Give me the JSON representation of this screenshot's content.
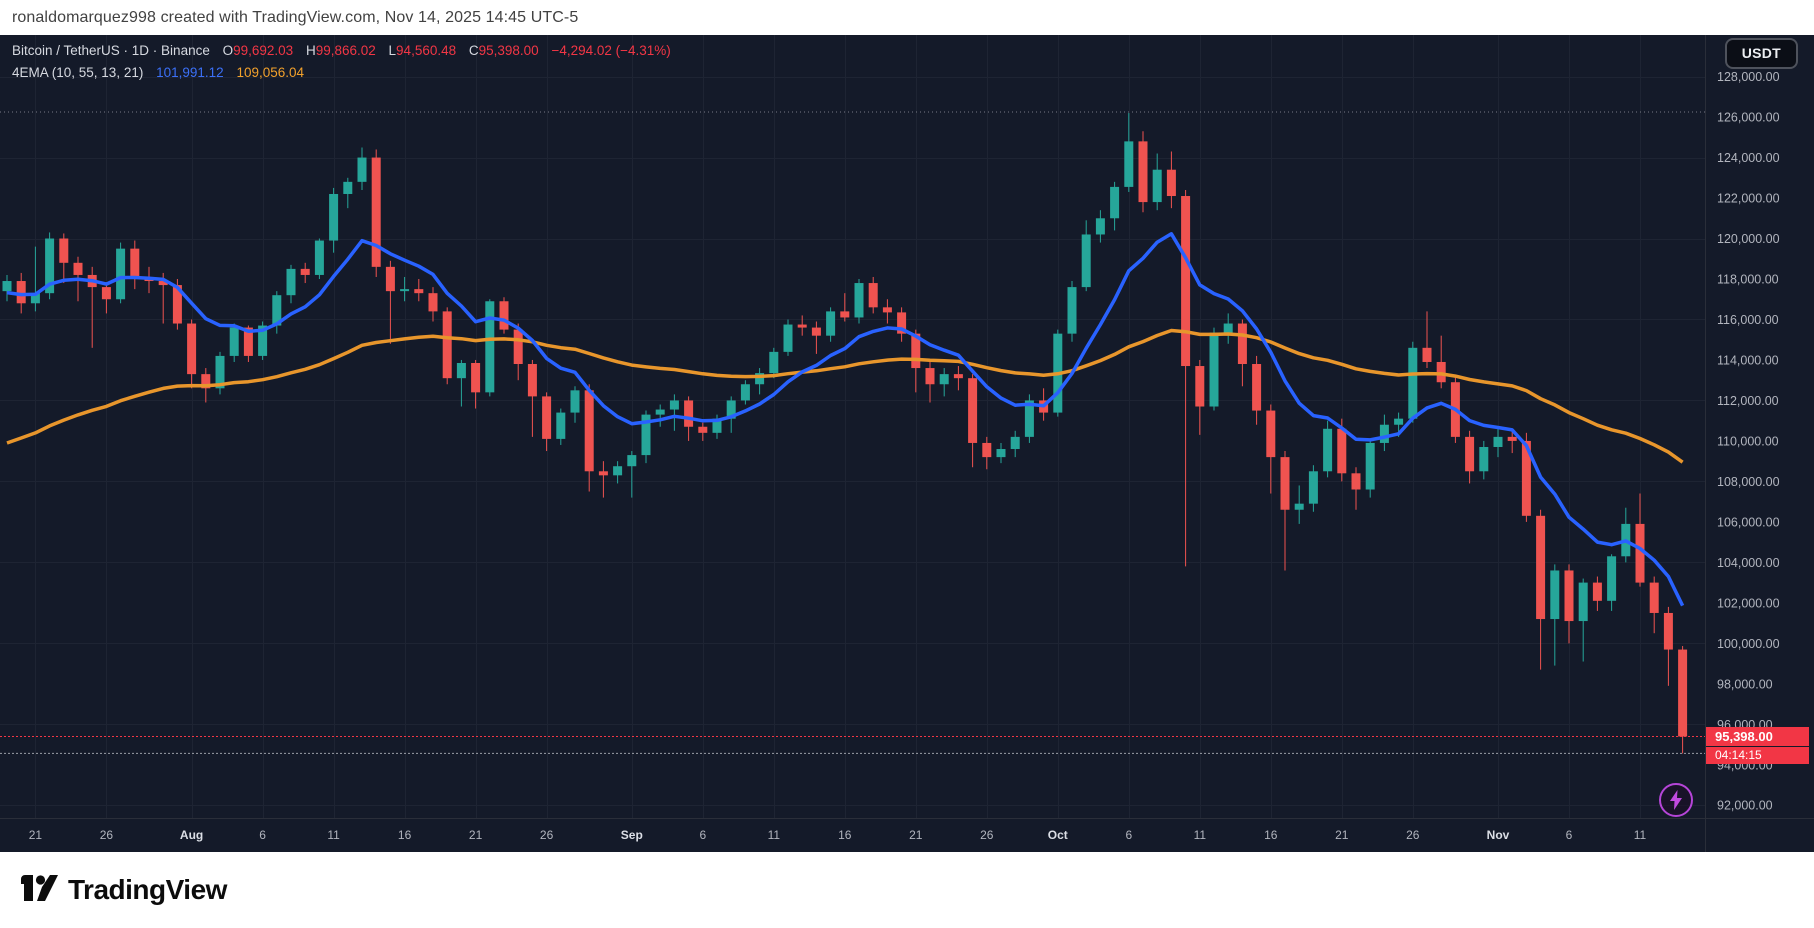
{
  "watermark": {
    "text": "ronaldomarquez998 created with TradingView.com, Nov 14, 2025 14:45 UTC-5"
  },
  "legend": {
    "symbol_title": "Bitcoin / TetherUS · 1D · Binance",
    "ohlc": {
      "open_label": "O",
      "open": "99,692.03",
      "high_label": "H",
      "high": "99,866.02",
      "low_label": "L",
      "low": "94,560.48",
      "close_label": "C",
      "close": "95,398.00",
      "change": "−4,294.02 (−4.31%)"
    },
    "indicator": {
      "name": "4EMA (10, 55, 13, 21)",
      "fast_value": "101,991.12",
      "slow_value": "109,056.04"
    }
  },
  "currency_button": {
    "label": "USDT"
  },
  "price_tag": {
    "price": "95,398.00",
    "countdown": "04:14:15"
  },
  "footer": {
    "brand": "TradingView"
  },
  "colors": {
    "chart_bg": "#141a29",
    "panel_bg": "#ffffff",
    "up": "#26a69a",
    "down": "#ef5350",
    "ema_fast": "#2962ff",
    "ema_slow": "#e8962c",
    "grid": "#1e2433",
    "axis_border": "#2a2e39",
    "axis_text": "#b2b5be",
    "month_text": "#dcdfe6",
    "ath_line": "#787b86",
    "last_price_line": "#f23645",
    "low_line": "#9b9ea8",
    "tag_bg": "#f23645"
  },
  "price_scale": {
    "label_min": 92000,
    "label_max": 128000,
    "label_step": 2000,
    "grid_step": 4000,
    "axis_top_price": 128820,
    "axis_bottom_price": 91370,
    "labels": [
      "128,000.00",
      "126,000.00",
      "124,000.00",
      "122,000.00",
      "120,000.00",
      "118,000.00",
      "116,000.00",
      "114,000.00",
      "112,000.00",
      "110,000.00",
      "108,000.00",
      "106,000.00",
      "104,000.00",
      "102,000.00",
      "100,000.00",
      "98,000.00",
      "96,000.00",
      "94,000.00",
      "92,000.00"
    ]
  },
  "time_scale": {
    "labels": [
      {
        "text": "21",
        "day": 2,
        "bold": false
      },
      {
        "text": "26",
        "day": 7,
        "bold": false
      },
      {
        "text": "Aug",
        "day": 13,
        "bold": true
      },
      {
        "text": "6",
        "day": 18,
        "bold": false
      },
      {
        "text": "11",
        "day": 23,
        "bold": false
      },
      {
        "text": "16",
        "day": 28,
        "bold": false
      },
      {
        "text": "21",
        "day": 33,
        "bold": false
      },
      {
        "text": "26",
        "day": 38,
        "bold": false
      },
      {
        "text": "Sep",
        "day": 44,
        "bold": true
      },
      {
        "text": "6",
        "day": 49,
        "bold": false
      },
      {
        "text": "11",
        "day": 54,
        "bold": false
      },
      {
        "text": "16",
        "day": 59,
        "bold": false
      },
      {
        "text": "21",
        "day": 64,
        "bold": false
      },
      {
        "text": "26",
        "day": 69,
        "bold": false
      },
      {
        "text": "Oct",
        "day": 74,
        "bold": true
      },
      {
        "text": "6",
        "day": 79,
        "bold": false
      },
      {
        "text": "11",
        "day": 84,
        "bold": false
      },
      {
        "text": "16",
        "day": 89,
        "bold": false
      },
      {
        "text": "21",
        "day": 94,
        "bold": false
      },
      {
        "text": "26",
        "day": 99,
        "bold": false
      },
      {
        "text": "Nov",
        "day": 105,
        "bold": true
      },
      {
        "text": "6",
        "day": 110,
        "bold": false
      },
      {
        "text": "11",
        "day": 115,
        "bold": false
      }
    ]
  },
  "chart_data": {
    "type": "candlestick",
    "symbol": "Bitcoin / TetherUS",
    "interval": "1D",
    "exchange": "Binance",
    "quote_currency": "USDT",
    "x_range": [
      "2025-07-19",
      "2025-11-14"
    ],
    "y_visible_range": [
      91370,
      128820
    ],
    "special_levels": {
      "ath_line": 126250,
      "last_price": 95398,
      "day_low": 94560
    },
    "ema": {
      "name": "4EMA (10, 55, 13, 21)",
      "periods": [
        10,
        55,
        13,
        21
      ],
      "visible": [
        {
          "period": 10,
          "color": "#2962ff",
          "seed": 117200,
          "last_value": 101991.12
        },
        {
          "period": 55,
          "color": "#e8962c",
          "seed": 109600,
          "last_value": 109056.04
        }
      ]
    },
    "ohlc": [
      [
        "2025-07-19",
        117400,
        118200,
        116900,
        117900
      ],
      [
        "2025-07-20",
        117900,
        118300,
        116300,
        116800
      ],
      [
        "2025-07-21",
        116800,
        119600,
        116400,
        117300
      ],
      [
        "2025-07-22",
        117300,
        120300,
        117000,
        120000
      ],
      [
        "2025-07-23",
        120000,
        120250,
        117800,
        118800
      ],
      [
        "2025-07-24",
        118800,
        119100,
        116900,
        118200
      ],
      [
        "2025-07-25",
        118200,
        118600,
        114600,
        117600
      ],
      [
        "2025-07-26",
        117600,
        117800,
        116300,
        117000
      ],
      [
        "2025-07-27",
        117000,
        119800,
        116800,
        119500
      ],
      [
        "2025-07-28",
        119500,
        119900,
        117500,
        118100
      ],
      [
        "2025-07-29",
        118100,
        118600,
        117300,
        117900
      ],
      [
        "2025-07-30",
        117900,
        118300,
        115800,
        117700
      ],
      [
        "2025-07-31",
        117700,
        118000,
        115500,
        115800
      ],
      [
        "2025-08-01",
        115800,
        116000,
        112600,
        113300
      ],
      [
        "2025-08-02",
        113300,
        113600,
        111900,
        112600
      ],
      [
        "2025-08-03",
        112600,
        114400,
        112300,
        114200
      ],
      [
        "2025-08-04",
        114200,
        115800,
        113900,
        115600
      ],
      [
        "2025-08-05",
        115600,
        115700,
        113900,
        114200
      ],
      [
        "2025-08-06",
        114200,
        115900,
        114000,
        115700
      ],
      [
        "2025-08-07",
        115700,
        117400,
        115300,
        117200
      ],
      [
        "2025-08-08",
        117200,
        118700,
        116800,
        118500
      ],
      [
        "2025-08-09",
        118500,
        118800,
        117800,
        118200
      ],
      [
        "2025-08-10",
        118200,
        120000,
        118000,
        119900
      ],
      [
        "2025-08-11",
        119900,
        122500,
        119300,
        122200
      ],
      [
        "2025-08-12",
        122200,
        123000,
        121500,
        122800
      ],
      [
        "2025-08-13",
        122800,
        124500,
        122400,
        124000
      ],
      [
        "2025-08-14",
        124000,
        124400,
        118100,
        118600
      ],
      [
        "2025-08-15",
        118600,
        118900,
        114800,
        117400
      ],
      [
        "2025-08-16",
        117400,
        118100,
        116900,
        117500
      ],
      [
        "2025-08-17",
        117500,
        118000,
        116900,
        117300
      ],
      [
        "2025-08-18",
        117300,
        117600,
        115900,
        116400
      ],
      [
        "2025-08-19",
        116400,
        116600,
        112800,
        113100
      ],
      [
        "2025-08-20",
        113100,
        114000,
        111700,
        113850
      ],
      [
        "2025-08-21",
        113850,
        114000,
        111600,
        112400
      ],
      [
        "2025-08-22",
        112400,
        117000,
        112200,
        116900
      ],
      [
        "2025-08-23",
        116900,
        117100,
        115300,
        115500
      ],
      [
        "2025-08-24",
        115500,
        115800,
        113000,
        113800
      ],
      [
        "2025-08-25",
        113800,
        114000,
        110200,
        112200
      ],
      [
        "2025-08-26",
        112200,
        112400,
        109500,
        110100
      ],
      [
        "2025-08-27",
        110100,
        111600,
        109800,
        111400
      ],
      [
        "2025-08-28",
        111400,
        112700,
        110900,
        112500
      ],
      [
        "2025-08-29",
        112500,
        112800,
        107500,
        108500
      ],
      [
        "2025-08-30",
        108500,
        109000,
        107200,
        108300
      ],
      [
        "2025-08-31",
        108300,
        109000,
        107900,
        108750
      ],
      [
        "2025-09-01",
        108750,
        109500,
        107200,
        109300
      ],
      [
        "2025-09-02",
        109300,
        111500,
        108900,
        111300
      ],
      [
        "2025-09-03",
        111300,
        111800,
        110700,
        111550
      ],
      [
        "2025-09-04",
        111550,
        112300,
        110500,
        112000
      ],
      [
        "2025-09-05",
        112000,
        112200,
        110000,
        110700
      ],
      [
        "2025-09-06",
        110700,
        110900,
        110000,
        110400
      ],
      [
        "2025-09-07",
        110400,
        111300,
        110100,
        111100
      ],
      [
        "2025-09-08",
        111100,
        112200,
        110400,
        112000
      ],
      [
        "2025-09-09",
        112000,
        113000,
        111800,
        112800
      ],
      [
        "2025-09-10",
        112800,
        113600,
        112300,
        113350
      ],
      [
        "2025-09-11",
        113350,
        114600,
        113100,
        114400
      ],
      [
        "2025-09-12",
        114400,
        116000,
        114200,
        115750
      ],
      [
        "2025-09-13",
        115750,
        116200,
        115200,
        115600
      ],
      [
        "2025-09-14",
        115600,
        115900,
        114300,
        115200
      ],
      [
        "2025-09-15",
        115200,
        116600,
        114900,
        116400
      ],
      [
        "2025-09-16",
        116400,
        117300,
        115900,
        116100
      ],
      [
        "2025-09-17",
        116100,
        118000,
        115800,
        117800
      ],
      [
        "2025-09-18",
        117800,
        118100,
        116300,
        116600
      ],
      [
        "2025-09-19",
        116600,
        117000,
        115800,
        116350
      ],
      [
        "2025-09-20",
        116350,
        116600,
        114900,
        115300
      ],
      [
        "2025-09-21",
        115300,
        115500,
        112400,
        113600
      ],
      [
        "2025-09-22",
        113600,
        113900,
        111900,
        112800
      ],
      [
        "2025-09-23",
        112800,
        113600,
        112200,
        113300
      ],
      [
        "2025-09-24",
        113300,
        113700,
        112500,
        113100
      ],
      [
        "2025-09-25",
        113100,
        113300,
        108700,
        109900
      ],
      [
        "2025-09-26",
        109900,
        110200,
        108600,
        109200
      ],
      [
        "2025-09-27",
        109200,
        109900,
        108900,
        109600
      ],
      [
        "2025-09-28",
        109600,
        110500,
        109200,
        110200
      ],
      [
        "2025-09-29",
        110200,
        112300,
        109900,
        112000
      ],
      [
        "2025-09-30",
        112000,
        112600,
        111000,
        111400
      ],
      [
        "2025-10-01",
        111400,
        115500,
        111200,
        115300
      ],
      [
        "2025-10-02",
        115300,
        117900,
        114900,
        117600
      ],
      [
        "2025-10-03",
        117600,
        120900,
        117400,
        120200
      ],
      [
        "2025-10-04",
        120200,
        121400,
        119800,
        121000
      ],
      [
        "2025-10-05",
        121000,
        122800,
        120400,
        122550
      ],
      [
        "2025-10-06",
        122550,
        126200,
        122300,
        124800
      ],
      [
        "2025-10-07",
        124800,
        125300,
        121300,
        121800
      ],
      [
        "2025-10-08",
        121800,
        124200,
        121400,
        123400
      ],
      [
        "2025-10-09",
        123400,
        124300,
        121500,
        122100
      ],
      [
        "2025-10-10",
        122100,
        122400,
        103800,
        113700
      ],
      [
        "2025-10-11",
        113700,
        114000,
        110300,
        111700
      ],
      [
        "2025-10-12",
        111700,
        115600,
        111500,
        115350
      ],
      [
        "2025-10-13",
        115350,
        116300,
        114800,
        115800
      ],
      [
        "2025-10-14",
        115800,
        116000,
        112700,
        113800
      ],
      [
        "2025-10-15",
        113800,
        114200,
        110800,
        111500
      ],
      [
        "2025-10-16",
        111500,
        111800,
        107400,
        109200
      ],
      [
        "2025-10-17",
        109200,
        109500,
        103600,
        106600
      ],
      [
        "2025-10-18",
        106600,
        107800,
        105900,
        106900
      ],
      [
        "2025-10-19",
        106900,
        108800,
        106500,
        108500
      ],
      [
        "2025-10-20",
        108500,
        111000,
        108200,
        110600
      ],
      [
        "2025-10-21",
        110600,
        111100,
        108000,
        108400
      ],
      [
        "2025-10-22",
        108400,
        108700,
        106600,
        107600
      ],
      [
        "2025-10-23",
        107600,
        110100,
        107200,
        109900
      ],
      [
        "2025-10-24",
        109900,
        111300,
        109500,
        110800
      ],
      [
        "2025-10-25",
        110800,
        111400,
        110200,
        111100
      ],
      [
        "2025-10-26",
        111100,
        114900,
        110900,
        114600
      ],
      [
        "2025-10-27",
        114600,
        116400,
        113600,
        113900
      ],
      [
        "2025-10-28",
        113900,
        115200,
        112600,
        112900
      ],
      [
        "2025-10-29",
        112900,
        113200,
        109900,
        110200
      ],
      [
        "2025-10-30",
        110200,
        110500,
        107900,
        108500
      ],
      [
        "2025-10-31",
        108500,
        110000,
        108100,
        109700
      ],
      [
        "2025-11-01",
        109700,
        110600,
        109200,
        110200
      ],
      [
        "2025-11-02",
        110200,
        110500,
        109400,
        110000
      ],
      [
        "2025-11-03",
        110000,
        110400,
        106000,
        106300
      ],
      [
        "2025-11-04",
        106300,
        106600,
        98700,
        101200
      ],
      [
        "2025-11-05",
        101200,
        103900,
        98900,
        103600
      ],
      [
        "2025-11-06",
        103600,
        103900,
        100000,
        101100
      ],
      [
        "2025-11-07",
        101100,
        103200,
        99100,
        103000
      ],
      [
        "2025-11-08",
        103000,
        103300,
        101600,
        102100
      ],
      [
        "2025-11-09",
        102100,
        104400,
        101600,
        104300
      ],
      [
        "2025-11-10",
        104300,
        106700,
        104000,
        105900
      ],
      [
        "2025-11-11",
        105900,
        107400,
        102800,
        103000
      ],
      [
        "2025-11-12",
        103000,
        103300,
        100500,
        101500
      ],
      [
        "2025-11-13",
        101500,
        101800,
        97900,
        99692
      ],
      [
        "2025-11-14",
        99692,
        99866,
        94560,
        95398
      ]
    ]
  }
}
